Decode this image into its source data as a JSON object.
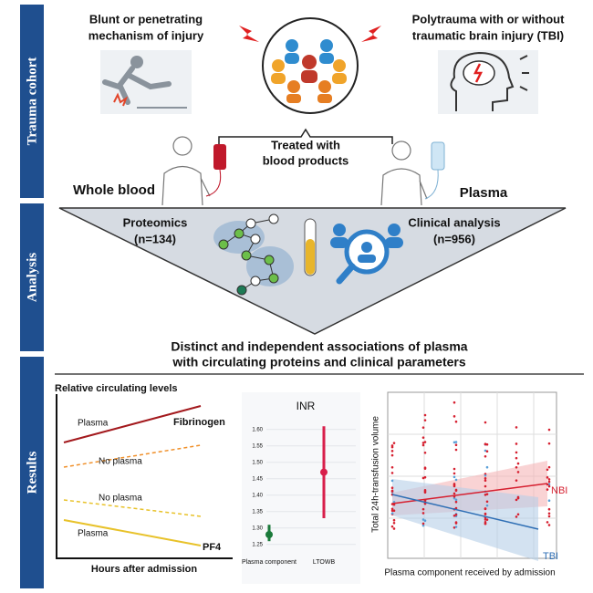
{
  "sections": [
    "Trauma cohort",
    "Analysis",
    "Results"
  ],
  "cohort": {
    "mechanism": [
      "Blunt or penetrating",
      "mechanism of injury"
    ],
    "polytrauma": [
      "Polytrauma with or without",
      "traumatic brain injury (TBI)"
    ],
    "treated": [
      "Treated with",
      "blood products"
    ],
    "whole_blood": "Whole blood",
    "plasma": "Plasma"
  },
  "analysis": {
    "proteomics": [
      "Proteomics",
      "(n=134)"
    ],
    "clinical": [
      "Clinical analysis",
      "(n=956)"
    ]
  },
  "conclusion": [
    "Distinct and independent associations of plasma",
    "with circulating proteins and clinical parameters"
  ],
  "results": {
    "levels": {
      "title": "Relative circulating levels",
      "fib_plasma": "Plasma",
      "fibrinogen": "Fibrinogen",
      "fib_no_plasma": "No plasma",
      "pf4_no_plasma": "No plasma",
      "pf4_plasma": "Plasma",
      "pf4": "PF4",
      "xlabel": "Hours after admission"
    },
    "inr": {
      "type": "dot-range",
      "title": "INR",
      "categories": [
        "Plasma component",
        "LTOWB"
      ],
      "values": [
        1.28,
        1.47
      ],
      "lows": [
        1.26,
        1.33
      ],
      "highs": [
        1.31,
        1.61
      ],
      "colors": [
        "#1b7a3a",
        "#d81e4a"
      ],
      "ylim": [
        1.23,
        1.63
      ],
      "yticks": [
        1.25,
        {
          "value": 1.3,
          "label": "1.30"
        },
        1.35,
        {
          "value": 1.4,
          "label": "1.40"
        },
        1.45,
        {
          "value": 1.5,
          "label": "1.50"
        },
        1.55,
        {
          "value": 1.6,
          "label": "1.60"
        }
      ]
    },
    "scatter": {
      "ylabel": "Total 24h-transfusion volume",
      "xlabel": "Plasma component received by admission",
      "nbi": "NBI",
      "tbi": "TBI"
    }
  }
}
